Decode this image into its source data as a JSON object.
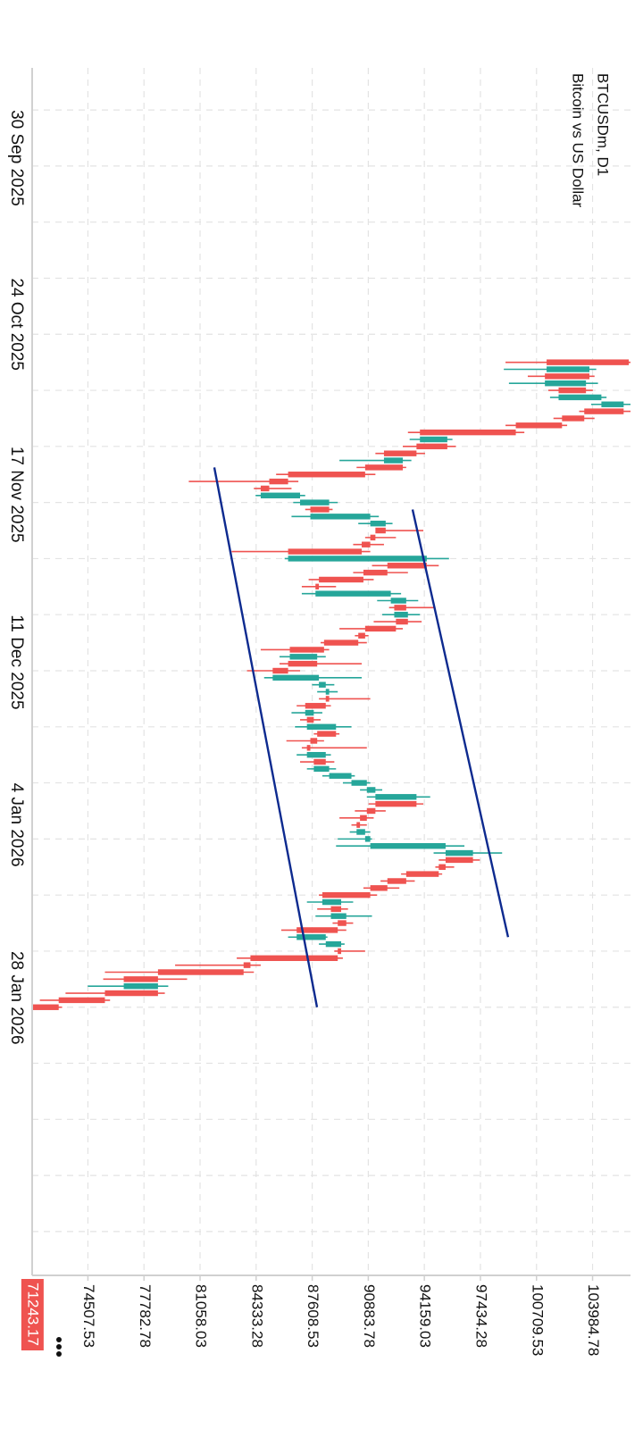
{
  "chart_data": {
    "type": "candlestick",
    "title": "BTCUSDm, D1",
    "subtitle": "Bitcoin vs US Dollar",
    "up_color": "#26a69a",
    "down_color": "#ef5350",
    "line_color": "#0d2a8f",
    "grid": true,
    "xlim": [
      "2025-09-24",
      "2026-03-15"
    ],
    "ylim": [
      71250,
      106200
    ],
    "xticks": [
      {
        "value": "2025-09-30",
        "label": "30 Sep 2025"
      },
      {
        "value": "2025-10-08",
        "label": null
      },
      {
        "value": "2025-10-16",
        "label": null
      },
      {
        "value": "2025-10-24",
        "label": "24 Oct 2025"
      },
      {
        "value": "2025-11-01",
        "label": null
      },
      {
        "value": "2025-11-09",
        "label": null
      },
      {
        "value": "2025-11-17",
        "label": "17 Nov 2025"
      },
      {
        "value": "2025-11-25",
        "label": null
      },
      {
        "value": "2025-12-03",
        "label": null
      },
      {
        "value": "2025-12-11",
        "label": "11 Dec 2025"
      },
      {
        "value": "2025-12-19",
        "label": null
      },
      {
        "value": "2025-12-27",
        "label": null
      },
      {
        "value": "2026-01-04",
        "label": "4 Jan 2026"
      },
      {
        "value": "2026-01-12",
        "label": null
      },
      {
        "value": "2026-01-20",
        "label": null
      },
      {
        "value": "2026-01-28",
        "label": "28 Jan 2026"
      },
      {
        "value": "2026-02-05",
        "label": null
      },
      {
        "value": "2026-02-13",
        "label": null
      },
      {
        "value": "2026-02-21",
        "label": null
      },
      {
        "value": "2026-03-01",
        "label": null
      },
      {
        "value": "2026-03-09",
        "label": null
      }
    ],
    "yticks": [
      74507.53,
      77782.78,
      81058.03,
      84333.28,
      87608.53,
      90883.78,
      94159.03,
      97434.28,
      100709.53,
      103984.78
    ],
    "last_price": 71243.17,
    "x": [
      "2025-11-05",
      "2025-11-06",
      "2025-11-07",
      "2025-11-08",
      "2025-11-09",
      "2025-11-10",
      "2025-11-11",
      "2025-11-12",
      "2025-11-13",
      "2025-11-14",
      "2025-11-15",
      "2025-11-16",
      "2025-11-17",
      "2025-11-18",
      "2025-11-19",
      "2025-11-20",
      "2025-11-21",
      "2025-11-22",
      "2025-11-23",
      "2025-11-24",
      "2025-11-25",
      "2025-11-26",
      "2025-11-27",
      "2025-11-28",
      "2025-11-29",
      "2025-11-30",
      "2025-12-01",
      "2025-12-02",
      "2025-12-03",
      "2025-12-04",
      "2025-12-05",
      "2025-12-06",
      "2025-12-07",
      "2025-12-08",
      "2025-12-09",
      "2025-12-10",
      "2025-12-11",
      "2025-12-12",
      "2025-12-13",
      "2025-12-14",
      "2025-12-15",
      "2025-12-16",
      "2025-12-17",
      "2025-12-18",
      "2025-12-19",
      "2025-12-20",
      "2025-12-21",
      "2025-12-22",
      "2025-12-23",
      "2025-12-24",
      "2025-12-25",
      "2025-12-26",
      "2025-12-27",
      "2025-12-28",
      "2025-12-29",
      "2025-12-30",
      "2025-12-31",
      "2026-01-01",
      "2026-01-02",
      "2026-01-03",
      "2026-01-04",
      "2026-01-05",
      "2026-01-06",
      "2026-01-07",
      "2026-01-08",
      "2026-01-09",
      "2026-01-10",
      "2026-01-11",
      "2026-01-12",
      "2026-01-13",
      "2026-01-14",
      "2026-01-15",
      "2026-01-16",
      "2026-01-17",
      "2026-01-18",
      "2026-01-19",
      "2026-01-20",
      "2026-01-21",
      "2026-01-22",
      "2026-01-23",
      "2026-01-24",
      "2026-01-25",
      "2026-01-26",
      "2026-01-27",
      "2026-01-28",
      "2026-01-29",
      "2026-01-30",
      "2026-01-31",
      "2026-02-01",
      "2026-02-02",
      "2026-02-03",
      "2026-02-04",
      "2026-02-05"
    ],
    "open": [
      106100,
      101300,
      103800,
      101200,
      103600,
      102000,
      104500,
      105800,
      103500,
      102200,
      99500,
      93900,
      95500,
      93700,
      91800,
      92900,
      90700,
      86200,
      85100,
      84600,
      86900,
      88600,
      87500,
      91000,
      91900,
      91300,
      91000,
      90500,
      86200,
      94300,
      92000,
      90600,
      88000,
      87800,
      92200,
      93100,
      92400,
      93200,
      92500,
      90700,
      90300,
      88300,
      86300,
      87900,
      86200,
      85300,
      88000,
      88400,
      88600,
      88400,
      87200,
      87700,
      87300,
      89000,
      87900,
      87500,
      87300,
      88400,
      87700,
      88600,
      89900,
      90800,
      91300,
      93700,
      91300,
      90800,
      90400,
      90200,
      90700,
      91000,
      95400,
      97000,
      95400,
      95000,
      93100,
      92000,
      91000,
      88200,
      89300,
      88700,
      89600,
      89100,
      86700,
      88400,
      89300,
      89100,
      84000,
      83600,
      78600,
      76600,
      78600,
      75500,
      72800
    ],
    "high": [
      106600,
      104200,
      104100,
      104300,
      104000,
      104800,
      106500,
      106300,
      104100,
      102500,
      100000,
      95800,
      96000,
      94200,
      93400,
      93100,
      91300,
      86800,
      86400,
      87200,
      89100,
      88800,
      91500,
      92300,
      94100,
      92500,
      91800,
      91000,
      95600,
      95000,
      93200,
      91200,
      89000,
      92800,
      93800,
      94800,
      93900,
      94000,
      92900,
      90900,
      90800,
      88600,
      88400,
      90500,
      86900,
      90500,
      88900,
      89100,
      91000,
      88700,
      88200,
      88100,
      89900,
      89200,
      88300,
      90800,
      88700,
      88900,
      89000,
      90100,
      91000,
      91700,
      94500,
      94100,
      91900,
      91200,
      90800,
      91000,
      91100,
      96500,
      98700,
      97400,
      95900,
      95200,
      93600,
      92700,
      91400,
      90000,
      89700,
      91100,
      90000,
      89600,
      88500,
      89500,
      90700,
      89400,
      84600,
      84200,
      80300,
      79200,
      79000,
      75800,
      73000
    ],
    "low": [
      98900,
      98800,
      100200,
      99100,
      101400,
      101500,
      103900,
      103200,
      101700,
      98900,
      93200,
      93300,
      92900,
      91300,
      89200,
      90200,
      85500,
      80400,
      84200,
      84300,
      86500,
      87200,
      86400,
      90300,
      91400,
      90700,
      90000,
      82900,
      86000,
      91100,
      90000,
      87400,
      87000,
      87000,
      91400,
      92100,
      91700,
      91200,
      89200,
      90100,
      88100,
      84600,
      85700,
      85700,
      83800,
      84800,
      87600,
      87900,
      88000,
      86700,
      86400,
      86900,
      86600,
      87700,
      86100,
      87000,
      86700,
      86900,
      87300,
      88200,
      89400,
      90400,
      90800,
      90900,
      90100,
      89200,
      89900,
      89800,
      89100,
      89000,
      94700,
      95000,
      94800,
      92800,
      91600,
      90600,
      88000,
      87300,
      87900,
      87800,
      88800,
      85800,
      86200,
      88000,
      88900,
      83200,
      79600,
      75500,
      75400,
      74500,
      73200,
      71700,
      71250
    ],
    "close": [
      101300,
      103800,
      101200,
      103600,
      102000,
      104500,
      105800,
      103500,
      102200,
      99500,
      93900,
      95500,
      93700,
      91800,
      92900,
      90700,
      86200,
      85100,
      84600,
      86900,
      88600,
      87500,
      91000,
      91900,
      91300,
      91000,
      90500,
      86200,
      94300,
      92000,
      90600,
      88000,
      87800,
      92200,
      93100,
      92400,
      93200,
      92500,
      90700,
      90300,
      88300,
      86300,
      87900,
      86200,
      85300,
      88000,
      88400,
      88600,
      88400,
      87200,
      87700,
      87300,
      89000,
      87900,
      87500,
      87300,
      88400,
      87700,
      88600,
      89900,
      90800,
      91300,
      93700,
      91300,
      90800,
      90400,
      90200,
      90700,
      91000,
      95400,
      97000,
      95400,
      95000,
      93100,
      92000,
      91000,
      88200,
      89300,
      88700,
      89600,
      89100,
      86700,
      88400,
      89300,
      89100,
      84000,
      83600,
      78600,
      76600,
      78600,
      75500,
      72800,
      71243.17
    ],
    "trendlines": [
      {
        "start": [
          "2025-11-20",
          81890
        ],
        "end": [
          "2026-02-05",
          87890
        ]
      },
      {
        "start": [
          "2025-11-26",
          93470
        ],
        "end": [
          "2026-01-26",
          99050
        ]
      }
    ]
  }
}
